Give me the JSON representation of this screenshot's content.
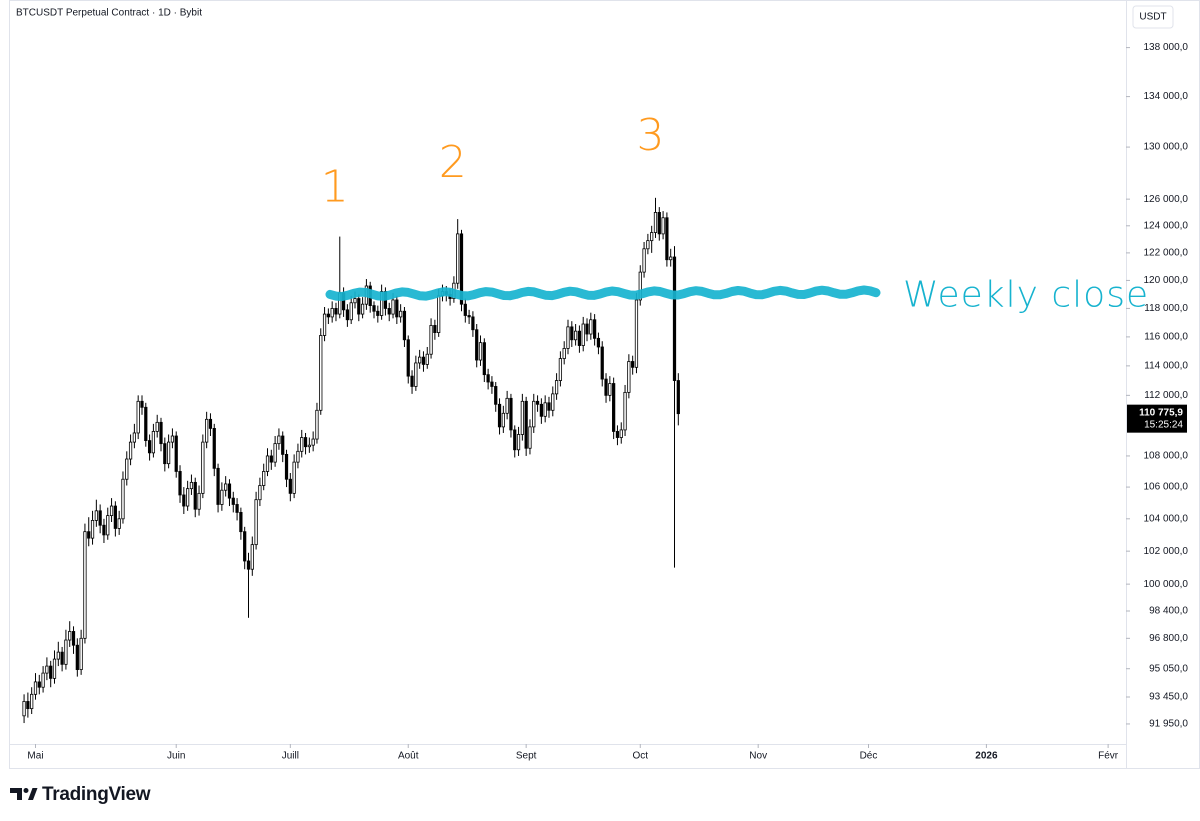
{
  "chart_data": {
    "type": "candlestick",
    "title": "BTCUSDT Perpetual Contract · 1D · Bybit",
    "currency": "USDT",
    "log_scale": true,
    "up_color": "#ffffff",
    "down_color": "#000000",
    "wick_color": "#000000",
    "ylim": [
      90850,
      142000
    ],
    "xlim": [
      -3.7,
      289.7
    ],
    "yticks": [
      {
        "value": 91950,
        "label": "91 950,0"
      },
      {
        "value": 93450,
        "label": "93 450,0"
      },
      {
        "value": 95050,
        "label": "95 050,0"
      },
      {
        "value": 96800,
        "label": "96 800,0"
      },
      {
        "value": 98400,
        "label": "98 400,0"
      },
      {
        "value": 100000,
        "label": "100 000,0"
      },
      {
        "value": 102000,
        "label": "102 000,0"
      },
      {
        "value": 104000,
        "label": "104 000,0"
      },
      {
        "value": 106000,
        "label": "106 000,0"
      },
      {
        "value": 108000,
        "label": "108 000,0"
      },
      {
        "value": 112000,
        "label": "112 000,0"
      },
      {
        "value": 114000,
        "label": "114 000,0"
      },
      {
        "value": 116000,
        "label": "116 000,0"
      },
      {
        "value": 118000,
        "label": "118 000,0"
      },
      {
        "value": 120000,
        "label": "120 000,0"
      },
      {
        "value": 122000,
        "label": "122 000,0"
      },
      {
        "value": 124000,
        "label": "124 000,0"
      },
      {
        "value": 126000,
        "label": "126 000,0"
      },
      {
        "value": 130000,
        "label": "130 000,0"
      },
      {
        "value": 134000,
        "label": "134 000,0"
      },
      {
        "value": 138000,
        "label": "138 000,0"
      }
    ],
    "xticks": [
      {
        "value": 3,
        "label": "Mai"
      },
      {
        "value": 40,
        "label": "Juin"
      },
      {
        "value": 70,
        "label": "Juill"
      },
      {
        "value": 101,
        "label": "Août"
      },
      {
        "value": 132,
        "label": "Sept"
      },
      {
        "value": 162,
        "label": "Oct"
      },
      {
        "value": 193,
        "label": "Nov"
      },
      {
        "value": 222,
        "label": "Déc"
      },
      {
        "value": 253,
        "label": "2026"
      },
      {
        "value": 285,
        "label": "Févr"
      }
    ],
    "last_price": {
      "value": 110775.9,
      "label": "110 775,9"
    },
    "countdown": "15:25:24",
    "weekly_close": {
      "label": "Weekly close",
      "level": 119000,
      "color": "#17b3cf"
    },
    "peaks": [
      {
        "label": "1",
        "index": 83
      },
      {
        "label": "2",
        "index": 114
      },
      {
        "label": "3",
        "index": 166
      }
    ],
    "peak_color": "#ff9a1f",
    "ohlc": [
      [
        92400,
        93600,
        92000,
        93200
      ],
      [
        93200,
        93700,
        92300,
        92800
      ],
      [
        92800,
        94000,
        92500,
        93600
      ],
      [
        93600,
        94800,
        93300,
        94300
      ],
      [
        94300,
        94700,
        93600,
        94000
      ],
      [
        94000,
        95200,
        93700,
        94800
      ],
      [
        94800,
        95700,
        94400,
        95200
      ],
      [
        95200,
        95500,
        94000,
        94500
      ],
      [
        94500,
        96100,
        94200,
        95600
      ],
      [
        95600,
        96600,
        95200,
        96000
      ],
      [
        96000,
        96300,
        94900,
        95300
      ],
      [
        95300,
        97300,
        95000,
        96700
      ],
      [
        96700,
        97800,
        96300,
        97200
      ],
      [
        97200,
        97500,
        95900,
        96400
      ],
      [
        96400,
        96800,
        94600,
        95000
      ],
      [
        95000,
        97300,
        94700,
        96800
      ],
      [
        96800,
        103700,
        96500,
        103200
      ],
      [
        103200,
        104100,
        102300,
        102800
      ],
      [
        102800,
        104500,
        102400,
        103900
      ],
      [
        103900,
        105200,
        103500,
        104500
      ],
      [
        104500,
        104900,
        103100,
        103600
      ],
      [
        103600,
        104000,
        102500,
        103000
      ],
      [
        103000,
        104700,
        102700,
        104200
      ],
      [
        104200,
        105300,
        103800,
        104800
      ],
      [
        104800,
        105100,
        102900,
        103400
      ],
      [
        103400,
        104500,
        103000,
        104000
      ],
      [
        104000,
        107000,
        103700,
        106500
      ],
      [
        106500,
        108300,
        106100,
        107800
      ],
      [
        107800,
        109400,
        107400,
        108900
      ],
      [
        108900,
        110100,
        108500,
        109500
      ],
      [
        109500,
        112000,
        109100,
        111600
      ],
      [
        111600,
        112000,
        110700,
        111200
      ],
      [
        111200,
        111500,
        108600,
        109000
      ],
      [
        109000,
        109400,
        107700,
        108200
      ],
      [
        108200,
        110100,
        107900,
        109600
      ],
      [
        109600,
        110700,
        109200,
        110200
      ],
      [
        110200,
        110500,
        108300,
        108800
      ],
      [
        108800,
        109200,
        107000,
        107500
      ],
      [
        107500,
        109400,
        107200,
        108900
      ],
      [
        108900,
        109800,
        108500,
        109300
      ],
      [
        109300,
        109600,
        106600,
        107000
      ],
      [
        107000,
        107400,
        105000,
        105500
      ],
      [
        105500,
        106000,
        104300,
        104800
      ],
      [
        104800,
        106400,
        104500,
        105900
      ],
      [
        105900,
        106800,
        105500,
        106300
      ],
      [
        106300,
        106600,
        104100,
        104600
      ],
      [
        104600,
        106100,
        104200,
        105600
      ],
      [
        105600,
        109400,
        105300,
        108900
      ],
      [
        108900,
        110900,
        108500,
        110400
      ],
      [
        110400,
        110800,
        109300,
        109800
      ],
      [
        109800,
        110100,
        106700,
        107200
      ],
      [
        107200,
        107500,
        104400,
        104900
      ],
      [
        104900,
        106300,
        104500,
        105800
      ],
      [
        105800,
        106700,
        105400,
        106200
      ],
      [
        106200,
        106500,
        104800,
        105300
      ],
      [
        105300,
        105700,
        104400,
        104900
      ],
      [
        104900,
        105300,
        103900,
        104400
      ],
      [
        104400,
        104700,
        102700,
        103200
      ],
      [
        103200,
        103500,
        100900,
        101400
      ],
      [
        101400,
        101900,
        98000,
        100900
      ],
      [
        100900,
        102900,
        100500,
        102400
      ],
      [
        102400,
        105700,
        102100,
        105200
      ],
      [
        105200,
        106600,
        104800,
        106100
      ],
      [
        106100,
        107500,
        105800,
        107000
      ],
      [
        107000,
        108500,
        106700,
        108000
      ],
      [
        108000,
        108400,
        107100,
        107600
      ],
      [
        107600,
        109300,
        107300,
        108800
      ],
      [
        108800,
        109800,
        108400,
        109300
      ],
      [
        109300,
        109600,
        107600,
        108100
      ],
      [
        108100,
        108400,
        106000,
        106500
      ],
      [
        106500,
        106900,
        105100,
        105600
      ],
      [
        105600,
        108100,
        105300,
        107600
      ],
      [
        107600,
        108800,
        107200,
        108300
      ],
      [
        108300,
        109700,
        107900,
        109200
      ],
      [
        109200,
        109500,
        108100,
        108600
      ],
      [
        108600,
        109200,
        108200,
        108700
      ],
      [
        108700,
        109600,
        108300,
        109100
      ],
      [
        109100,
        111500,
        108800,
        111000
      ],
      [
        111000,
        116600,
        110700,
        116100
      ],
      [
        116100,
        118100,
        115700,
        117600
      ],
      [
        117600,
        118000,
        116900,
        117400
      ],
      [
        117400,
        118500,
        117000,
        118000
      ],
      [
        118000,
        118400,
        117100,
        117600
      ],
      [
        117600,
        123200,
        117300,
        119100
      ],
      [
        119100,
        119500,
        117400,
        117900
      ],
      [
        117900,
        118300,
        116700,
        117200
      ],
      [
        117200,
        118900,
        116900,
        118400
      ],
      [
        118400,
        119200,
        118000,
        118700
      ],
      [
        118700,
        119000,
        117100,
        117600
      ],
      [
        117600,
        118800,
        117300,
        118300
      ],
      [
        118300,
        120100,
        117900,
        119600
      ],
      [
        119600,
        119900,
        117700,
        118200
      ],
      [
        118200,
        118500,
        117300,
        117800
      ],
      [
        117800,
        118200,
        117000,
        117500
      ],
      [
        117500,
        119700,
        117200,
        119200
      ],
      [
        119200,
        119500,
        117500,
        118000
      ],
      [
        118000,
        118400,
        117100,
        117600
      ],
      [
        117600,
        119100,
        117300,
        118600
      ],
      [
        118600,
        118900,
        116900,
        117400
      ],
      [
        117400,
        118300,
        117000,
        117800
      ],
      [
        117800,
        118100,
        115300,
        115800
      ],
      [
        115800,
        116100,
        112800,
        113300
      ],
      [
        113300,
        113700,
        112100,
        112600
      ],
      [
        112600,
        114700,
        112300,
        114200
      ],
      [
        114200,
        115100,
        113800,
        114600
      ],
      [
        114600,
        115000,
        113600,
        114100
      ],
      [
        114100,
        115300,
        113800,
        114800
      ],
      [
        114800,
        117300,
        114500,
        116800
      ],
      [
        116800,
        117200,
        115800,
        116300
      ],
      [
        116300,
        119400,
        116000,
        118900
      ],
      [
        118900,
        119700,
        118500,
        119200
      ],
      [
        119200,
        119600,
        118500,
        119000
      ],
      [
        119000,
        119400,
        118200,
        118700
      ],
      [
        118700,
        120300,
        118400,
        119800
      ],
      [
        119800,
        124500,
        119400,
        123400
      ],
      [
        123400,
        123700,
        117800,
        118300
      ],
      [
        118300,
        118700,
        117000,
        117500
      ],
      [
        117500,
        117900,
        116900,
        117400
      ],
      [
        117400,
        117800,
        116000,
        116500
      ],
      [
        116500,
        116900,
        113900,
        114400
      ],
      [
        114400,
        116100,
        114000,
        115600
      ],
      [
        115600,
        115900,
        112900,
        113400
      ],
      [
        113400,
        113800,
        112400,
        112900
      ],
      [
        112900,
        113300,
        112100,
        112600
      ],
      [
        112600,
        112900,
        110900,
        111400
      ],
      [
        111400,
        111800,
        109400,
        109900
      ],
      [
        109900,
        111300,
        109500,
        110800
      ],
      [
        110800,
        112300,
        110400,
        111800
      ],
      [
        111800,
        112100,
        109200,
        109700
      ],
      [
        109700,
        110000,
        107900,
        108400
      ],
      [
        108400,
        109900,
        108000,
        109400
      ],
      [
        109400,
        112100,
        109000,
        111600
      ],
      [
        111600,
        111900,
        108000,
        108500
      ],
      [
        108500,
        110400,
        108100,
        109900
      ],
      [
        109900,
        112100,
        109500,
        111600
      ],
      [
        111600,
        112000,
        110900,
        111400
      ],
      [
        111400,
        111800,
        110100,
        110600
      ],
      [
        110600,
        112000,
        110200,
        111500
      ],
      [
        111500,
        111900,
        110500,
        111000
      ],
      [
        111000,
        112600,
        110600,
        112100
      ],
      [
        112100,
        113500,
        111700,
        113000
      ],
      [
        113000,
        115000,
        112600,
        114500
      ],
      [
        114500,
        115700,
        114100,
        115200
      ],
      [
        115200,
        117200,
        114800,
        116700
      ],
      [
        116700,
        117100,
        115300,
        115800
      ],
      [
        115800,
        116900,
        115400,
        116400
      ],
      [
        116400,
        116800,
        114900,
        115400
      ],
      [
        115400,
        117400,
        115000,
        116900
      ],
      [
        116900,
        117300,
        115700,
        116200
      ],
      [
        116200,
        117700,
        115800,
        117200
      ],
      [
        117200,
        117600,
        115400,
        115900
      ],
      [
        115900,
        116300,
        114800,
        115300
      ],
      [
        115300,
        115700,
        112600,
        113100
      ],
      [
        113100,
        113500,
        111500,
        112000
      ],
      [
        112000,
        113300,
        111600,
        112800
      ],
      [
        112800,
        113200,
        109100,
        109600
      ],
      [
        109600,
        110000,
        108700,
        109200
      ],
      [
        109200,
        110200,
        108800,
        109700
      ],
      [
        109700,
        112700,
        109300,
        112200
      ],
      [
        112200,
        114800,
        111800,
        114300
      ],
      [
        114300,
        114700,
        113400,
        113900
      ],
      [
        113900,
        119100,
        113500,
        118600
      ],
      [
        118600,
        121100,
        118200,
        120600
      ],
      [
        120600,
        122800,
        120200,
        122300
      ],
      [
        122300,
        123400,
        121900,
        122900
      ],
      [
        122900,
        124000,
        122000,
        123500
      ],
      [
        123500,
        126100,
        123100,
        125000
      ],
      [
        125000,
        125400,
        122900,
        123400
      ],
      [
        123400,
        125100,
        123000,
        124600
      ],
      [
        124600,
        125000,
        121000,
        121500
      ],
      [
        121500,
        122300,
        121000,
        121700
      ],
      [
        121700,
        122500,
        101000,
        113000
      ],
      [
        113000,
        113500,
        110000,
        110775.9
      ]
    ]
  },
  "brand": "TradingView"
}
